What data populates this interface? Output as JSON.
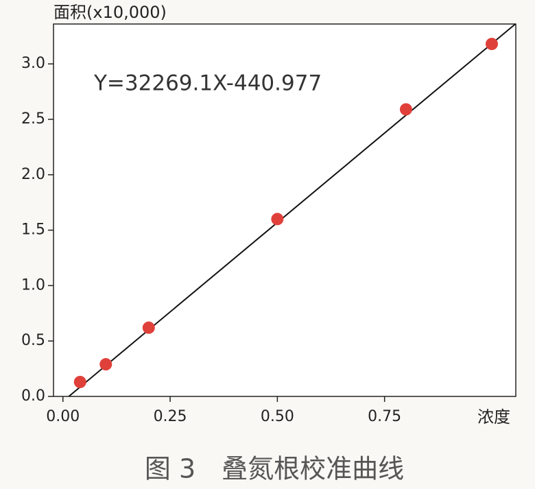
{
  "chart_data": {
    "type": "scatter",
    "ylabel": "面积(x10,000)",
    "xlabel": "浓度",
    "annotation": "Y=32269.1X-440.977",
    "caption": "图 3　叠氮根校准曲线",
    "points": {
      "color": "#e0403a",
      "x": [
        0.04,
        0.1,
        0.2,
        0.5,
        0.8,
        1.0
      ],
      "values": [
        0.13,
        0.29,
        0.62,
        1.6,
        2.59,
        3.18
      ]
    },
    "fit_line": {
      "color": "#111111",
      "x": [
        0.0137,
        1.055
      ],
      "values": [
        0,
        3.36
      ]
    },
    "xlim": [
      -0.022,
      1.056
    ],
    "ylim": [
      0,
      3.36
    ],
    "xticks": [
      {
        "value": 0,
        "label": "0.00"
      },
      {
        "value": 0.25,
        "label": "0.25"
      },
      {
        "value": 0.5,
        "label": "0.50"
      },
      {
        "value": 0.75,
        "label": "0.75"
      }
    ],
    "yticks": [
      {
        "value": 0,
        "label": "0.0"
      },
      0.5,
      {
        "value": 1,
        "label": "1.0"
      },
      1.5,
      {
        "value": 2,
        "label": "2.0"
      },
      2.5,
      {
        "value": 3,
        "label": "3.0"
      }
    ],
    "grid": false
  }
}
